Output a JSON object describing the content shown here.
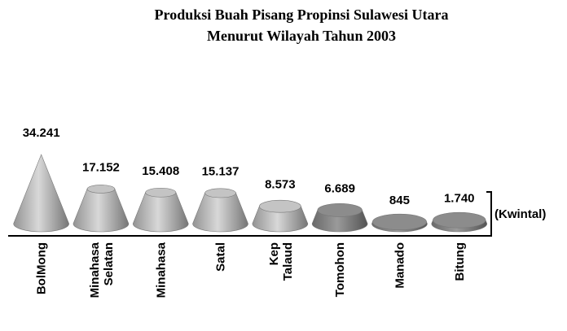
{
  "chart_data": {
    "type": "cone",
    "title": "Produksi Buah Pisang Propinsi Sulawesi Utara",
    "subtitle": "Menurut Wilayah Tahun 2003",
    "y_label": "(Kwintal)",
    "categories": [
      "BolMong",
      "Minahasa Selatan",
      "Minahasa",
      "Satal",
      "Kep Talaud",
      "Tomohon",
      "Manado",
      "Bitung"
    ],
    "values": [
      34241,
      17152,
      15408,
      15137,
      8573,
      6689,
      845,
      1740
    ],
    "value_labels": [
      "34.241",
      "17.152",
      "15.408",
      "15.137",
      "8.573",
      "6.689",
      "845",
      "1.740"
    ],
    "colors": [
      "#c4c4c4",
      "#c4c4c4",
      "#c4c4c4",
      "#c4c4c4",
      "#c4c4c4",
      "#8c8c8c",
      "#8c8c8c",
      "#8c8c8c"
    ]
  }
}
